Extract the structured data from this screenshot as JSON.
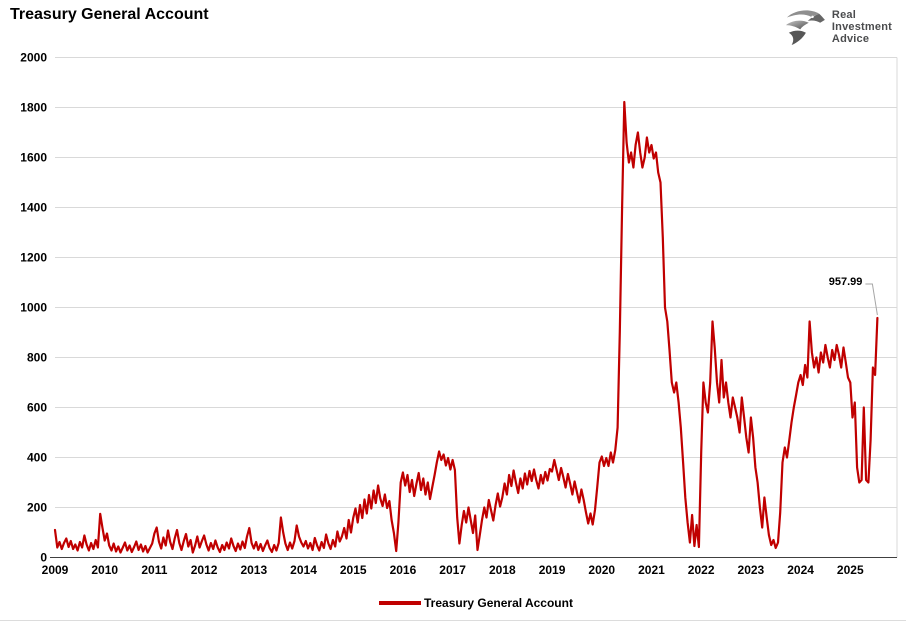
{
  "header": {
    "title": "Treasury General Account"
  },
  "logo": {
    "icon": "eagle-icon",
    "line1": "Real",
    "line2": "Investment",
    "line3": "Advice"
  },
  "colors": {
    "line": "#C00000",
    "grid": "#D9D9D9",
    "axis": "#404040",
    "right_border": "#D9D9D9",
    "callout": "#A6A6A6",
    "text": "#000000",
    "logo_text": "#4B4C4E"
  },
  "chart_data": {
    "type": "line",
    "title": "Treasury General Account",
    "xlabel": "",
    "ylabel": "",
    "x_ticks": [
      "2009",
      "2010",
      "2011",
      "2012",
      "2013",
      "2014",
      "2015",
      "2016",
      "2017",
      "2018",
      "2019",
      "2020",
      "2021",
      "2022",
      "2023",
      "2024",
      "2025"
    ],
    "x_axis": {
      "min": 2009,
      "max": 2025.94
    },
    "y_axis": {
      "min": 0,
      "max": 2000,
      "step": 200
    },
    "grid": "horizontal",
    "legend": {
      "position": "bottom",
      "label": "Treasury General Account"
    },
    "annotation": {
      "label": "957.99",
      "value": 957.99
    },
    "series": [
      {
        "name": "Treasury General Account",
        "color": "#C00000",
        "start_year": 2009,
        "points_per_year": 22,
        "values": [
          110,
          40,
          62,
          34,
          58,
          76,
          42,
          66,
          34,
          52,
          28,
          62,
          40,
          88,
          52,
          28,
          58,
          34,
          70,
          40,
          175,
          120,
          68,
          96,
          48,
          28,
          56,
          24,
          44,
          20,
          40,
          60,
          28,
          48,
          22,
          42,
          64,
          30,
          52,
          24,
          46,
          20,
          38,
          56,
          96,
          120,
          64,
          36,
          80,
          48,
          108,
          62,
          34,
          76,
          110,
          58,
          30,
          66,
          94,
          44,
          70,
          20,
          48,
          84,
          40,
          66,
          88,
          52,
          28,
          58,
          34,
          68,
          40,
          22,
          50,
          30,
          60,
          36,
          76,
          46,
          26,
          56,
          32,
          64,
          38,
          84,
          118,
          58,
          36,
          62,
          30,
          54,
          26,
          48,
          68,
          38,
          22,
          50,
          28,
          58,
          160,
          100,
          56,
          30,
          60,
          36,
          66,
          128,
          84,
          60,
          44,
          66,
          36,
          58,
          30,
          78,
          48,
          28,
          62,
          38,
          92,
          56,
          34,
          70,
          44,
          104,
          64,
          84,
          118,
          76,
          150,
          100,
          158,
          196,
          140,
          210,
          158,
          232,
          176,
          250,
          196,
          268,
          218,
          288,
          236,
          206,
          252,
          198,
          226,
          150,
          98,
          26,
          140,
          300,
          340,
          288,
          330,
          262,
          310,
          246,
          296,
          338,
          270,
          316,
          252,
          300,
          234,
          282,
          330,
          380,
          424,
          390,
          412,
          368,
          398,
          352,
          390,
          350,
          160,
          56,
          130,
          186,
          140,
          200,
          150,
          98,
          168,
          30,
          90,
          150,
          200,
          160,
          230,
          190,
          148,
          210,
          256,
          204,
          240,
          296,
          252,
          330,
          286,
          348,
          300,
          258,
          316,
          276,
          336,
          292,
          346,
          306,
          352,
          310,
          276,
          330,
          296,
          342,
          308,
          354,
          344,
          390,
          350,
          310,
          358,
          322,
          280,
          334,
          296,
          252,
          304,
          262,
          220,
          272,
          230,
          182,
          136,
          176,
          132,
          190,
          280,
          380,
          404,
          366,
          398,
          366,
          420,
          380,
          430,
          520,
          900,
          1400,
          1822,
          1660,
          1580,
          1620,
          1560,
          1650,
          1700,
          1620,
          1560,
          1600,
          1680,
          1620,
          1650,
          1596,
          1620,
          1540,
          1500,
          1280,
          1000,
          944,
          830,
          700,
          660,
          700,
          620,
          520,
          380,
          240,
          140,
          60,
          170,
          46,
          130,
          42,
          420,
          700,
          620,
          580,
          700,
          944,
          840,
          700,
          620,
          790,
          640,
          700,
          620,
          560,
          640,
          600,
          560,
          500,
          640,
          560,
          480,
          420,
          560,
          480,
          360,
          300,
          200,
          120,
          240,
          160,
          90,
          50,
          70,
          38,
          60,
          180,
          380,
          440,
          400,
          470,
          540,
          600,
          650,
          700,
          730,
          690,
          770,
          720,
          944,
          820,
          760,
          800,
          740,
          820,
          780,
          850,
          800,
          760,
          830,
          790,
          850,
          810,
          760,
          840,
          780,
          720,
          700,
          560,
          620,
          360,
          300,
          310,
          600,
          310,
          300,
          470,
          760,
          730,
          957.99
        ]
      }
    ]
  }
}
